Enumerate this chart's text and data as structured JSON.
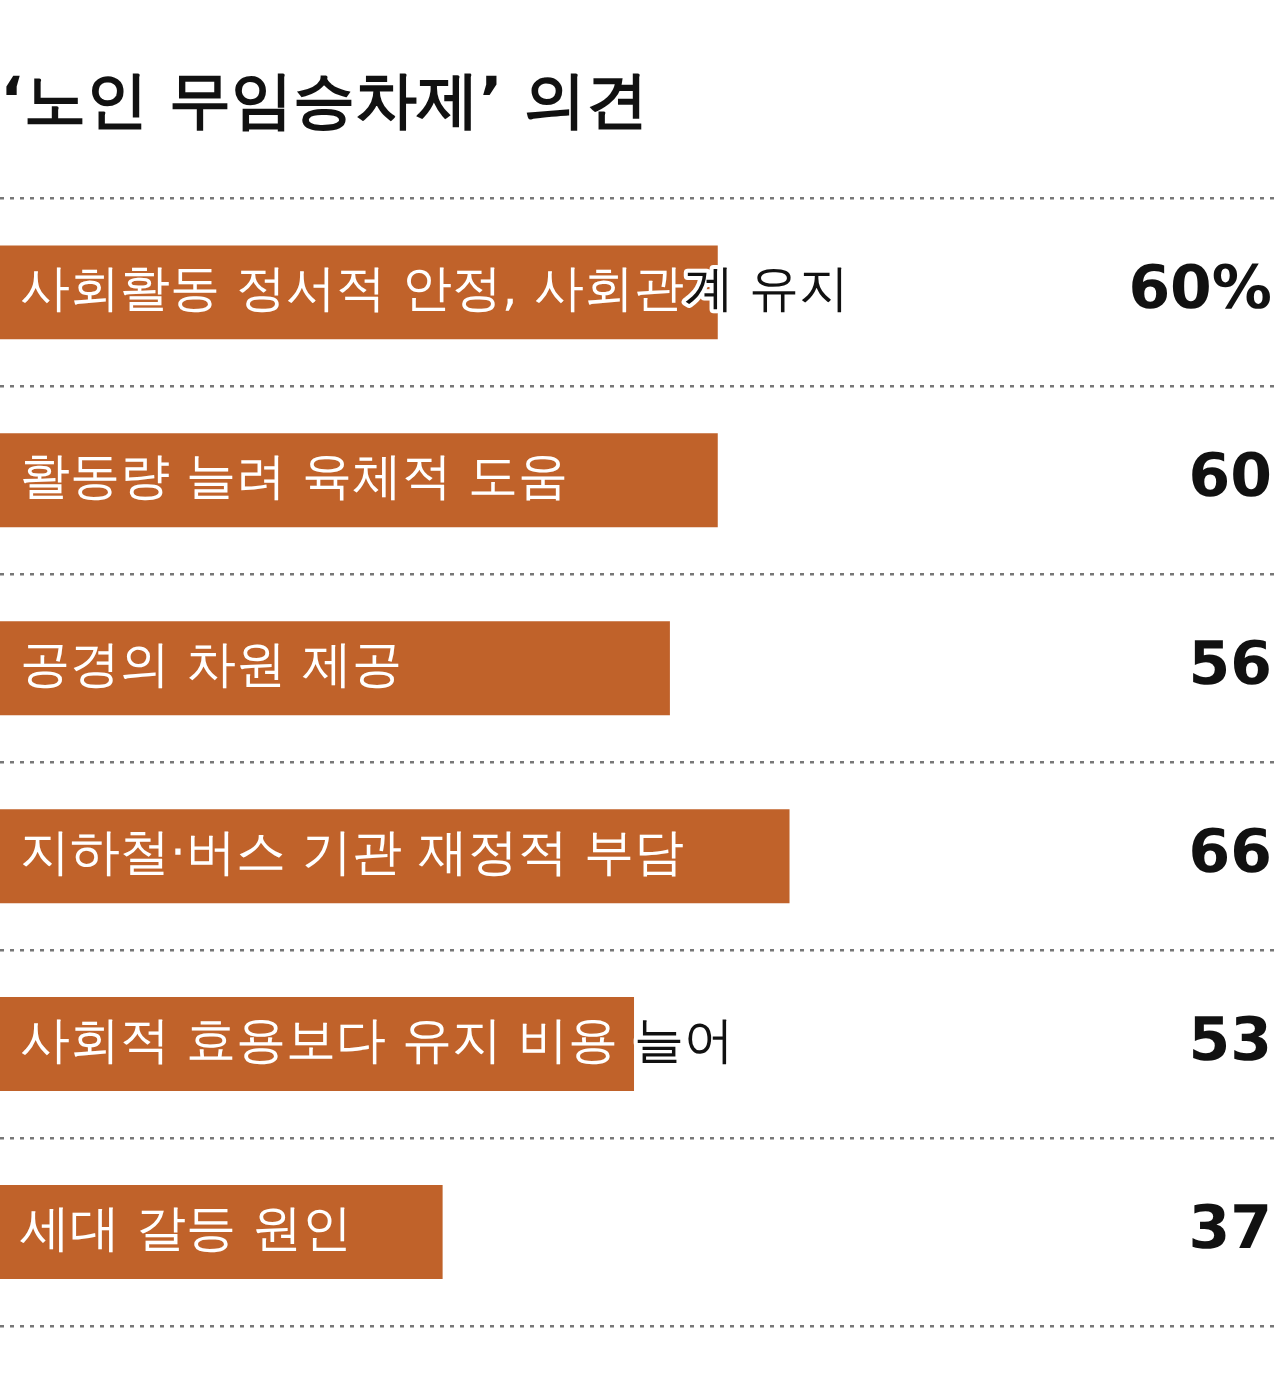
{
  "chart_data": {
    "type": "bar",
    "orientation": "horizontal",
    "title": "‘노인 무임승차제’ 의견",
    "categories": [
      "사회활동 정서적 안정, 사회관계 유지",
      "활동량 늘려 육체적 도움",
      "공경의 차원 제공",
      "지하철·버스 기관 재정적 부담",
      "사회적 효용보다 유지 비용 늘어",
      "세대 갈등 원인"
    ],
    "values": [
      60,
      60,
      56,
      66,
      53,
      37
    ],
    "value_labels": [
      "60%",
      "60",
      "56",
      "66",
      "53",
      "37"
    ],
    "color": "#c0622a",
    "xlim": [
      0,
      107
    ],
    "grid": "y",
    "tick_labels": false,
    "legend": false
  }
}
